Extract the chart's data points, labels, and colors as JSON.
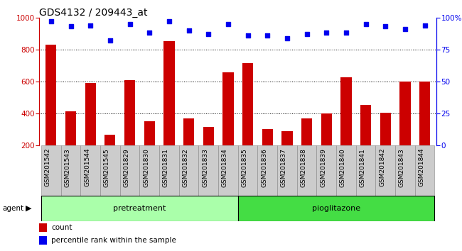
{
  "title": "GDS4132 / 209443_at",
  "samples": [
    "GSM201542",
    "GSM201543",
    "GSM201544",
    "GSM201545",
    "GSM201829",
    "GSM201830",
    "GSM201831",
    "GSM201832",
    "GSM201833",
    "GSM201834",
    "GSM201835",
    "GSM201836",
    "GSM201837",
    "GSM201838",
    "GSM201839",
    "GSM201840",
    "GSM201841",
    "GSM201842",
    "GSM201843",
    "GSM201844"
  ],
  "counts": [
    830,
    415,
    590,
    268,
    607,
    352,
    855,
    370,
    315,
    660,
    715,
    302,
    290,
    370,
    403,
    625,
    455,
    407,
    600,
    600
  ],
  "percentile_ranks": [
    97,
    93,
    94,
    82,
    95,
    88,
    97,
    90,
    87,
    95,
    86,
    86,
    84,
    87,
    88,
    88,
    95,
    93,
    91,
    94
  ],
  "pretreatment_count": 10,
  "pioglitazone_count": 10,
  "group_labels": [
    "pretreatment",
    "pioglitazone"
  ],
  "group_color_pretreatment": "#aaffaa",
  "group_color_pioglitazone": "#44dd44",
  "bar_color": "#cc0000",
  "dot_color": "#0000ee",
  "ylim_left": [
    200,
    1000
  ],
  "ylim_right": [
    0,
    100
  ],
  "yticks_left": [
    200,
    400,
    600,
    800,
    1000
  ],
  "yticks_right": [
    0,
    25,
    50,
    75,
    100
  ],
  "grid_values": [
    400,
    600,
    800
  ],
  "agent_label": "agent",
  "legend_count_label": "count",
  "legend_pct_label": "percentile rank within the sample",
  "title_fontsize": 10,
  "tick_fontsize": 6.5,
  "group_fontsize": 8,
  "legend_fontsize": 7.5
}
